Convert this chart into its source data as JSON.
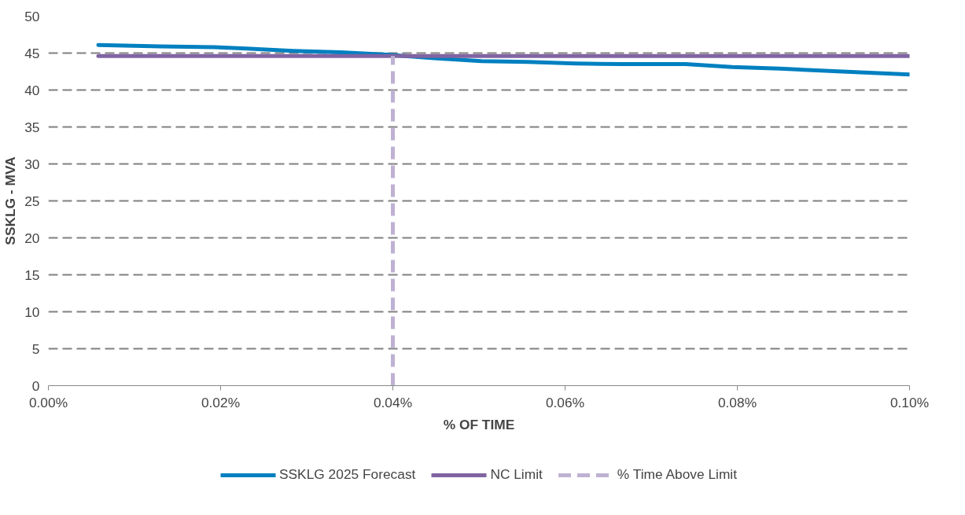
{
  "chart_data": {
    "type": "line",
    "xlabel": "% OF TIME",
    "ylabel": "SSKLG - MVA",
    "xlim": [
      0,
      0.1
    ],
    "ylim": [
      0,
      50
    ],
    "xticks": [
      {
        "value": 0,
        "label": "0.00%"
      },
      {
        "value": 0.02,
        "label": "0.02%"
      },
      {
        "value": 0.04,
        "label": "0.04%"
      },
      {
        "value": 0.06,
        "label": "0.06%"
      },
      {
        "value": 0.08,
        "label": "0.08%"
      },
      {
        "value": 0.1,
        "label": "0.10%"
      }
    ],
    "yticks": [
      0,
      5,
      10,
      15,
      20,
      25,
      30,
      35,
      40,
      45,
      50
    ],
    "grid": "y",
    "legend": "bottom",
    "marker": "none",
    "series": [
      {
        "name": "SSKLG 2025 Forecast",
        "color": "#0080c0",
        "line_style": "solid",
        "x": [
          0.0058,
          0.013,
          0.0193,
          0.023,
          0.0284,
          0.0339,
          0.0393,
          0.0448,
          0.0503,
          0.0557,
          0.0612,
          0.0667,
          0.074,
          0.0794,
          0.0849,
          0.0922,
          0.1
        ],
        "values": [
          46.1,
          45.9,
          45.8,
          45.6,
          45.3,
          45.1,
          44.8,
          44.3,
          43.9,
          43.8,
          43.6,
          43.5,
          43.5,
          43.1,
          42.9,
          42.5,
          42.1
        ]
      },
      {
        "name": "NC Limit",
        "color": "#8064a2",
        "line_style": "solid",
        "x": [
          0.0058,
          0.1
        ],
        "values": [
          44.6,
          44.6
        ]
      },
      {
        "name": "% Time Above Limit",
        "color": "#bfb1d3",
        "line_style": "dashed",
        "x": [
          0.04,
          0.04
        ],
        "values": [
          0,
          44.6
        ]
      }
    ]
  }
}
